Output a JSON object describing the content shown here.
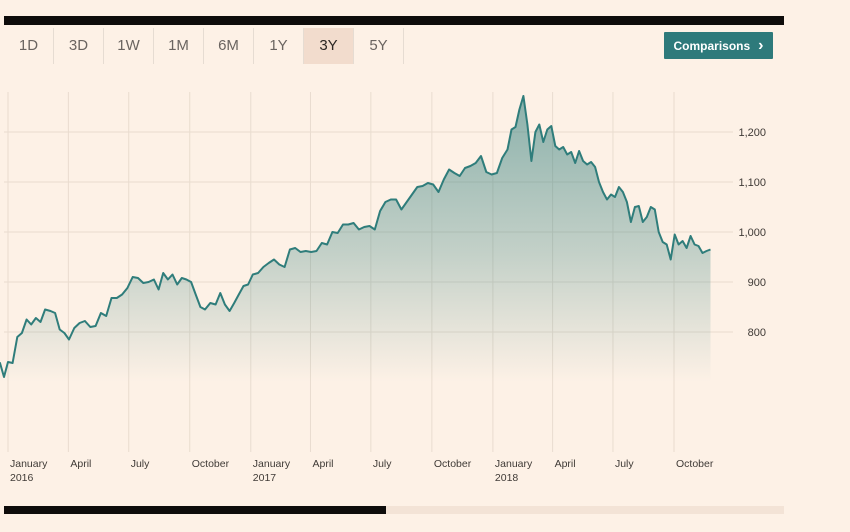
{
  "ranges": [
    {
      "label": "1D",
      "active": false
    },
    {
      "label": "3D",
      "active": false
    },
    {
      "label": "1W",
      "active": false
    },
    {
      "label": "1M",
      "active": false
    },
    {
      "label": "6M",
      "active": false
    },
    {
      "label": "1Y",
      "active": false
    },
    {
      "label": "3Y",
      "active": true
    },
    {
      "label": "5Y",
      "active": false
    }
  ],
  "comparisons_label": "Comparisons",
  "colors": {
    "line": "#2f7d7b",
    "fill": "#2f7d7b",
    "accent_button": "#2e7a7b",
    "background": "#fdf1e6"
  },
  "chart_data": {
    "type": "area",
    "title": "",
    "xlabel": "",
    "ylabel": "",
    "ylim": [
      700,
      1280
    ],
    "yticks": [
      800,
      900,
      1000,
      1100,
      1200
    ],
    "ytick_labels": [
      "800",
      "900",
      "1,000",
      "1,100",
      "1,200"
    ],
    "grid": true,
    "legend": "none",
    "xticks": [
      {
        "date": "2016-01-01",
        "label": "January",
        "sub": "2016"
      },
      {
        "date": "2016-04-01",
        "label": "April",
        "sub": ""
      },
      {
        "date": "2016-07-01",
        "label": "July",
        "sub": ""
      },
      {
        "date": "2016-10-01",
        "label": "October",
        "sub": ""
      },
      {
        "date": "2017-01-01",
        "label": "January",
        "sub": "2017"
      },
      {
        "date": "2017-04-01",
        "label": "April",
        "sub": ""
      },
      {
        "date": "2017-07-01",
        "label": "July",
        "sub": ""
      },
      {
        "date": "2017-10-01",
        "label": "October",
        "sub": ""
      },
      {
        "date": "2018-01-01",
        "label": "January",
        "sub": "2018"
      },
      {
        "date": "2018-04-01",
        "label": "April",
        "sub": ""
      },
      {
        "date": "2018-07-01",
        "label": "July",
        "sub": ""
      },
      {
        "date": "2018-10-01",
        "label": "October",
        "sub": ""
      }
    ],
    "series": [
      {
        "name": "",
        "points": [
          [
            "2015-11-27",
            740
          ],
          [
            "2015-12-02",
            710
          ],
          [
            "2015-12-08",
            712
          ],
          [
            "2015-12-14",
            740
          ],
          [
            "2015-12-20",
            738
          ],
          [
            "2015-12-26",
            710
          ],
          [
            "2016-01-01",
            740
          ],
          [
            "2016-01-08",
            738
          ],
          [
            "2016-01-15",
            790
          ],
          [
            "2016-01-22",
            798
          ],
          [
            "2016-01-29",
            825
          ],
          [
            "2016-02-05",
            815
          ],
          [
            "2016-02-12",
            828
          ],
          [
            "2016-02-19",
            820
          ],
          [
            "2016-02-26",
            845
          ],
          [
            "2016-03-05",
            842
          ],
          [
            "2016-03-12",
            838
          ],
          [
            "2016-03-19",
            805
          ],
          [
            "2016-03-26",
            798
          ],
          [
            "2016-04-02",
            785
          ],
          [
            "2016-04-10",
            808
          ],
          [
            "2016-04-18",
            818
          ],
          [
            "2016-04-26",
            822
          ],
          [
            "2016-05-04",
            810
          ],
          [
            "2016-05-12",
            812
          ],
          [
            "2016-05-20",
            838
          ],
          [
            "2016-05-28",
            832
          ],
          [
            "2016-06-05",
            868
          ],
          [
            "2016-06-13",
            868
          ],
          [
            "2016-06-21",
            875
          ],
          [
            "2016-06-29",
            888
          ],
          [
            "2016-07-07",
            910
          ],
          [
            "2016-07-15",
            908
          ],
          [
            "2016-07-23",
            898
          ],
          [
            "2016-07-31",
            900
          ],
          [
            "2016-08-08",
            905
          ],
          [
            "2016-08-15",
            885
          ],
          [
            "2016-08-22",
            918
          ],
          [
            "2016-08-29",
            905
          ],
          [
            "2016-09-05",
            915
          ],
          [
            "2016-09-12",
            895
          ],
          [
            "2016-09-19",
            908
          ],
          [
            "2016-09-26",
            905
          ],
          [
            "2016-10-03",
            900
          ],
          [
            "2016-10-10",
            875
          ],
          [
            "2016-10-17",
            850
          ],
          [
            "2016-10-24",
            845
          ],
          [
            "2016-11-01",
            858
          ],
          [
            "2016-11-09",
            855
          ],
          [
            "2016-11-16",
            878
          ],
          [
            "2016-11-23",
            855
          ],
          [
            "2016-11-30",
            842
          ],
          [
            "2016-12-07",
            858
          ],
          [
            "2016-12-14",
            875
          ],
          [
            "2016-12-21",
            892
          ],
          [
            "2016-12-28",
            895
          ],
          [
            "2017-01-04",
            915
          ],
          [
            "2017-01-12",
            918
          ],
          [
            "2017-01-20",
            930
          ],
          [
            "2017-01-28",
            938
          ],
          [
            "2017-02-05",
            945
          ],
          [
            "2017-02-13",
            935
          ],
          [
            "2017-02-21",
            930
          ],
          [
            "2017-03-01",
            965
          ],
          [
            "2017-03-09",
            968
          ],
          [
            "2017-03-17",
            960
          ],
          [
            "2017-03-25",
            962
          ],
          [
            "2017-04-02",
            960
          ],
          [
            "2017-04-10",
            962
          ],
          [
            "2017-04-18",
            978
          ],
          [
            "2017-04-26",
            975
          ],
          [
            "2017-05-04",
            1000
          ],
          [
            "2017-05-12",
            998
          ],
          [
            "2017-05-20",
            1015
          ],
          [
            "2017-05-28",
            1015
          ],
          [
            "2017-06-05",
            1018
          ],
          [
            "2017-06-13",
            1005
          ],
          [
            "2017-06-21",
            1010
          ],
          [
            "2017-06-29",
            1012
          ],
          [
            "2017-07-07",
            1005
          ],
          [
            "2017-07-15",
            1042
          ],
          [
            "2017-07-23",
            1060
          ],
          [
            "2017-07-31",
            1065
          ],
          [
            "2017-08-08",
            1065
          ],
          [
            "2017-08-16",
            1045
          ],
          [
            "2017-08-24",
            1060
          ],
          [
            "2017-09-01",
            1075
          ],
          [
            "2017-09-09",
            1090
          ],
          [
            "2017-09-17",
            1092
          ],
          [
            "2017-09-25",
            1098
          ],
          [
            "2017-10-03",
            1095
          ],
          [
            "2017-10-11",
            1080
          ],
          [
            "2017-10-19",
            1105
          ],
          [
            "2017-10-27",
            1125
          ],
          [
            "2017-11-04",
            1118
          ],
          [
            "2017-11-12",
            1112
          ],
          [
            "2017-11-20",
            1128
          ],
          [
            "2017-11-28",
            1132
          ],
          [
            "2017-12-06",
            1138
          ],
          [
            "2017-12-14",
            1152
          ],
          [
            "2017-12-22",
            1120
          ],
          [
            "2017-12-30",
            1115
          ],
          [
            "2018-01-07",
            1118
          ],
          [
            "2018-01-15",
            1148
          ],
          [
            "2018-01-23",
            1165
          ],
          [
            "2018-01-29",
            1205
          ],
          [
            "2018-02-04",
            1210
          ],
          [
            "2018-02-10",
            1245
          ],
          [
            "2018-02-16",
            1272
          ],
          [
            "2018-02-22",
            1215
          ],
          [
            "2018-02-28",
            1142
          ],
          [
            "2018-03-06",
            1200
          ],
          [
            "2018-03-12",
            1215
          ],
          [
            "2018-03-18",
            1180
          ],
          [
            "2018-03-24",
            1205
          ],
          [
            "2018-03-30",
            1212
          ],
          [
            "2018-04-05",
            1172
          ],
          [
            "2018-04-11",
            1165
          ],
          [
            "2018-04-17",
            1170
          ],
          [
            "2018-04-23",
            1155
          ],
          [
            "2018-04-29",
            1160
          ],
          [
            "2018-05-05",
            1138
          ],
          [
            "2018-05-11",
            1162
          ],
          [
            "2018-05-17",
            1142
          ],
          [
            "2018-05-23",
            1135
          ],
          [
            "2018-05-29",
            1140
          ],
          [
            "2018-06-04",
            1130
          ],
          [
            "2018-06-10",
            1100
          ],
          [
            "2018-06-16",
            1080
          ],
          [
            "2018-06-22",
            1065
          ],
          [
            "2018-06-28",
            1075
          ],
          [
            "2018-07-04",
            1070
          ],
          [
            "2018-07-10",
            1090
          ],
          [
            "2018-07-16",
            1080
          ],
          [
            "2018-07-22",
            1060
          ],
          [
            "2018-07-28",
            1020
          ],
          [
            "2018-08-03",
            1050
          ],
          [
            "2018-08-09",
            1052
          ],
          [
            "2018-08-15",
            1020
          ],
          [
            "2018-08-21",
            1030
          ],
          [
            "2018-08-27",
            1050
          ],
          [
            "2018-09-02",
            1045
          ],
          [
            "2018-09-08",
            1000
          ],
          [
            "2018-09-14",
            980
          ],
          [
            "2018-09-20",
            975
          ],
          [
            "2018-09-26",
            945
          ],
          [
            "2018-10-02",
            995
          ],
          [
            "2018-10-08",
            975
          ],
          [
            "2018-10-14",
            982
          ],
          [
            "2018-10-20",
            968
          ],
          [
            "2018-10-26",
            992
          ],
          [
            "2018-11-01",
            975
          ],
          [
            "2018-11-07",
            972
          ],
          [
            "2018-11-13",
            958
          ],
          [
            "2018-11-19",
            962
          ],
          [
            "2018-11-25",
            965
          ]
        ]
      }
    ]
  }
}
